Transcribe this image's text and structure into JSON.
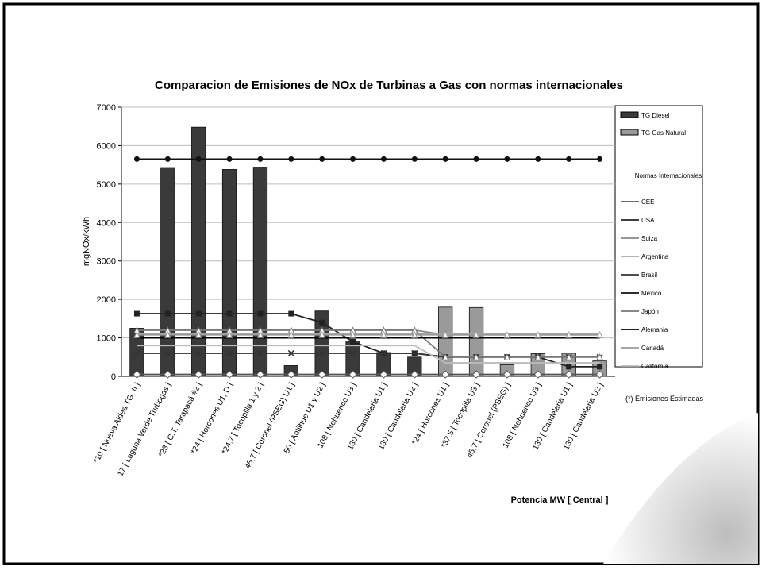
{
  "chart_data": {
    "type": "bar",
    "title": "Comparacion de Emisiones de NOx de Turbinas a Gas  con normas internacionales",
    "y_label": "mgNOx/kWh",
    "x_label": "Potencia MW [ Central ]",
    "note": "(*)  Emisiones Estimadas",
    "legend_title": "Normas Internacionales",
    "categories": [
      "*10  [ Nueva Aldea TG, II ]",
      "17  [ Laguna Verde Turbogas ]",
      "*23  [ C.T. Tarapacá #2 ]",
      "*24  [ Horcones U1, D ]",
      "*24,7  [ Tocopilla 1 y 2 ]",
      "45,7  [ Coronel (PSEG) U1 ]",
      "50  [ Antilhue  U1 y U2 ]",
      "108  [ Nehuenco  U3 ]",
      "130  [ Candelaria  U1 ]",
      "130  [ Candelaria  U2 ]",
      "*24  [ Horcones  U1 ]",
      "*37,5  [ Tocopilla U3 ]",
      "45,7  [ Coronel (PSEG) ]",
      "108  [ Nehuenco U3 ]",
      "130  [ Candelaria  U1 ]",
      "130  [ Candelaria  U2 ]"
    ],
    "ylim": [
      0,
      7000
    ],
    "yticks": [
      0,
      1000,
      2000,
      3000,
      4000,
      5000,
      6000,
      7000
    ],
    "grid": true,
    "series": [
      {
        "name": "TG Diesel",
        "type": "bar",
        "color": "#3a3a3a",
        "values": [
          1250,
          5430,
          6480,
          5380,
          5440,
          280,
          1700,
          920,
          620,
          500,
          null,
          null,
          null,
          null,
          null,
          null
        ]
      },
      {
        "name": "TG Gas Natural",
        "type": "bar",
        "color": "#9a9a9a",
        "values": [
          null,
          null,
          null,
          null,
          null,
          null,
          null,
          null,
          null,
          null,
          1800,
          1790,
          300,
          590,
          600,
          400
        ]
      },
      {
        "name": "CEE",
        "type": "line",
        "marker": "diamond",
        "color": "#555555",
        "values": [
          50,
          50,
          50,
          50,
          50,
          50,
          50,
          50,
          50,
          50,
          50,
          50,
          50,
          50,
          50,
          50
        ]
      },
      {
        "name": "USA",
        "type": "line",
        "marker": "square",
        "color": "#222222",
        "values": [
          1630,
          1630,
          1630,
          1630,
          1630,
          1630,
          1400,
          900,
          600,
          600,
          500,
          500,
          500,
          500,
          250,
          250
        ]
      },
      {
        "name": "Suiza",
        "type": "line",
        "marker": "none",
        "color": "#888888",
        "values": [
          1200,
          1200,
          1200,
          1200,
          1200,
          1200,
          1200,
          1200,
          1200,
          1200,
          1080,
          1080,
          1080,
          1080,
          1080,
          1080
        ]
      },
      {
        "name": "Argentina",
        "type": "line",
        "marker": "none",
        "color": "#aaaaaa",
        "values": [
          1100,
          1100,
          1100,
          1100,
          1100,
          1100,
          1100,
          1100,
          1100,
          1100,
          1100,
          1100,
          1100,
          1100,
          1100,
          1100
        ]
      },
      {
        "name": "Brasil",
        "type": "line",
        "marker": "cross",
        "color": "#333333",
        "values": [
          600,
          600,
          600,
          600,
          600,
          600,
          600,
          600,
          600,
          600,
          500,
          500,
          500,
          500,
          500,
          500
        ]
      },
      {
        "name": "Mexico",
        "type": "line",
        "marker": "circle",
        "color": "#111111",
        "values": [
          5650,
          5650,
          5650,
          5650,
          5650,
          5650,
          5650,
          5650,
          5650,
          5650,
          5650,
          5650,
          5650,
          5650,
          5650,
          5650
        ]
      },
      {
        "name": "Japón",
        "type": "line",
        "marker": "triangle",
        "color": "#777777",
        "values": [
          1200,
          1200,
          1200,
          1200,
          1200,
          1200,
          1200,
          1200,
          1200,
          1200,
          500,
          500,
          500,
          500,
          500,
          500
        ]
      },
      {
        "name": "Alemania",
        "type": "line",
        "marker": "none",
        "color": "#000000",
        "values": [
          1000,
          1000,
          1000,
          1000,
          1000,
          1000,
          1000,
          1000,
          1000,
          1000,
          1000,
          1000,
          1000,
          1000,
          1000,
          1000
        ]
      },
      {
        "name": "Canadá",
        "type": "line",
        "marker": "triangle",
        "color": "#999999",
        "values": [
          1080,
          1080,
          1080,
          1080,
          1080,
          1080,
          1080,
          1080,
          1080,
          1080,
          1080,
          1080,
          1080,
          1080,
          1080,
          1080
        ]
      },
      {
        "name": "California",
        "type": "line",
        "marker": "none",
        "color": "#bbbbbb",
        "values": [
          800,
          800,
          800,
          800,
          800,
          800,
          800,
          800,
          800,
          800,
          350,
          350,
          350,
          350,
          350,
          350
        ]
      }
    ]
  }
}
